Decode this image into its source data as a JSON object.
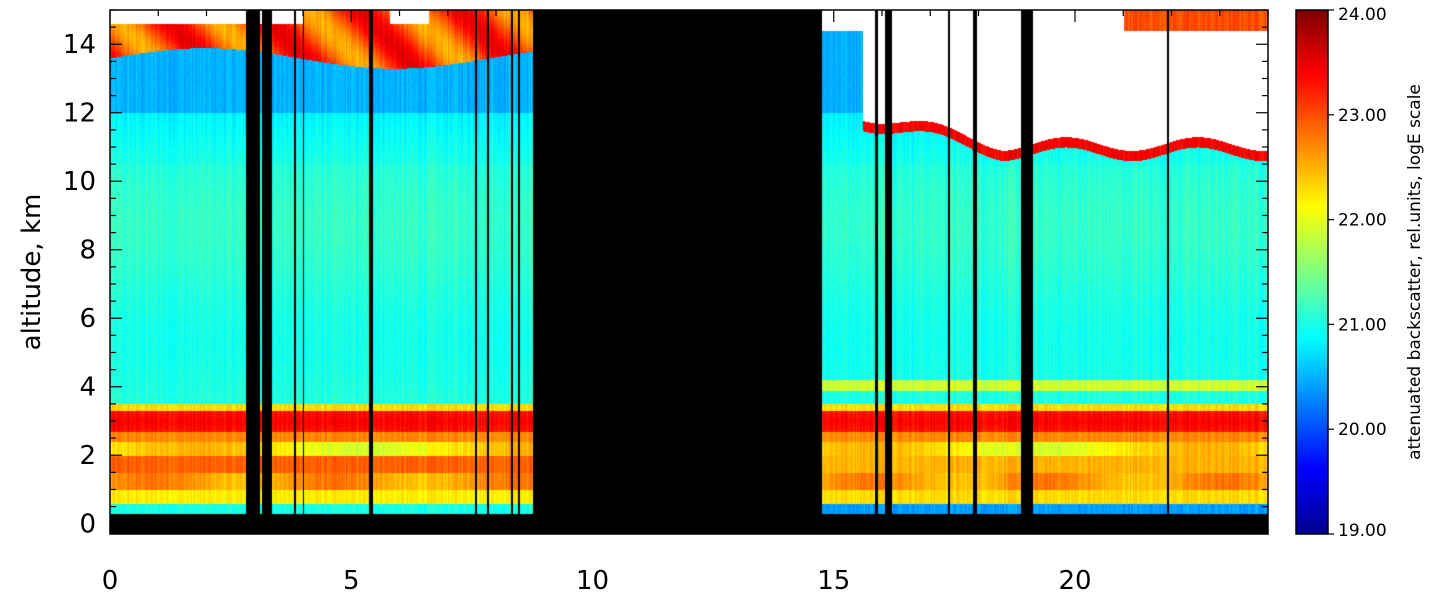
{
  "chart_data": {
    "type": "heatmap",
    "title": "",
    "xlabel": "",
    "ylabel": "altitude,  km",
    "xlim": [
      0,
      24
    ],
    "ylim": [
      -0.3,
      15
    ],
    "x_ticks": [
      0,
      5,
      10,
      15,
      20
    ],
    "x_tick_labels": [
      "0",
      "5",
      "10",
      "15",
      "20"
    ],
    "y_ticks": [
      0,
      2,
      4,
      6,
      8,
      10,
      12,
      14
    ],
    "y_tick_labels": [
      "0",
      "2",
      "4",
      "6",
      "8",
      "10",
      "12",
      "14"
    ],
    "colorbar": {
      "title": "attenuated backscatter,  rel.units,  logE scale",
      "range": [
        19,
        24
      ],
      "ticks": [
        19,
        20,
        21,
        22,
        23,
        24
      ],
      "tick_labels": [
        "19.00",
        "20.00",
        "21.00",
        "22.00",
        "23.00",
        "24.00"
      ],
      "colormap": "jet"
    },
    "no_data_intervals": [
      [
        8.75,
        14.75
      ]
    ],
    "surface_mask_top_km": 0.3,
    "profile_gaps_hours": [
      [
        2.8,
        3.1
      ],
      [
        3.15,
        3.35
      ],
      [
        3.8,
        3.85
      ],
      [
        3.98,
        4.02
      ],
      [
        5.35,
        5.45
      ],
      [
        7.55,
        7.59
      ],
      [
        7.8,
        7.84
      ],
      [
        8.3,
        8.34
      ],
      [
        8.45,
        8.49
      ],
      [
        15.85,
        15.9
      ],
      [
        16.05,
        16.2
      ],
      [
        17.35,
        17.4
      ],
      [
        17.88,
        17.96
      ],
      [
        18.88,
        19.12
      ],
      [
        21.9,
        21.93
      ]
    ],
    "layers": [
      {
        "desc": "boundary layer aerosol",
        "bottom_km": 0.3,
        "top_km": 3.4,
        "value": 22.8
      },
      {
        "desc": "elevated aerosol layer",
        "bottom_km": 2.7,
        "top_km": 3.3,
        "value": 23.4
      },
      {
        "desc": "thin layer (afternoon)",
        "bottom_km": 3.9,
        "top_km": 4.2,
        "value": 21.8,
        "x_range": [
          14.75,
          24
        ]
      },
      {
        "desc": "free troposphere",
        "bottom_km": 3.4,
        "top_km": 13.5,
        "value": 21.0
      },
      {
        "desc": "upper clouds",
        "bottom_km": 13.6,
        "top_km": 15,
        "value": 23.3
      },
      {
        "desc": "saturated cloud region",
        "bottom_km": 10.8,
        "top_km": 15,
        "value": 24.5,
        "x_range": [
          15.5,
          24
        ]
      }
    ],
    "colors": {
      "no_data": "#000000",
      "saturated": "#ffffff"
    }
  }
}
